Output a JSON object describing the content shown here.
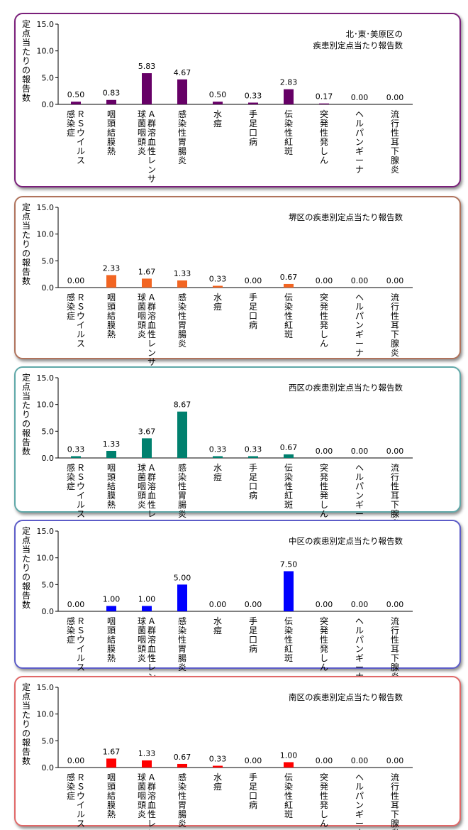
{
  "y_axis_label": "定点当たりの報告数",
  "categories": [
    [
      "ＲＳウイルス",
      "感染症"
    ],
    [
      "咽頭結膜熱"
    ],
    [
      "Ａ群溶血性レンサ",
      "球菌咽頭炎"
    ],
    [
      "感染性胃腸炎"
    ],
    [
      "水痘"
    ],
    [
      "手足口病"
    ],
    [
      "伝染性紅斑"
    ],
    [
      "突発性発しん"
    ],
    [
      "ヘルパンギーナ"
    ],
    [
      "流行性耳下腺炎"
    ]
  ],
  "chart_data": [
    {
      "type": "bar",
      "title": "北･東･美原区の\n疾患別定点当たり報告数",
      "ylim": [
        0,
        15
      ],
      "yticks": [
        "0.0",
        "5.0",
        "10.0",
        "15.0"
      ],
      "color": "#660066",
      "border_color": "#7a1f7a",
      "values": [
        0.5,
        0.83,
        5.83,
        4.67,
        0.5,
        0.33,
        2.83,
        0.17,
        0.0,
        0.0
      ],
      "value_labels": [
        "0.50",
        "0.83",
        "5.83",
        "4.67",
        "0.50",
        "0.33",
        "2.83",
        "0.17",
        "0.00",
        "0.00"
      ]
    },
    {
      "type": "bar",
      "title": "堺区の疾患別定点当たり報告数",
      "ylim": [
        0,
        15
      ],
      "yticks": [
        "0.0",
        "5.0",
        "10.0",
        "15.0"
      ],
      "color": "#f26522",
      "border_color": "#b0735c",
      "values": [
        0.0,
        2.33,
        1.67,
        1.33,
        0.33,
        0.0,
        0.67,
        0.0,
        0.0,
        0.0
      ],
      "value_labels": [
        "0.00",
        "2.33",
        "1.67",
        "1.33",
        "0.33",
        "0.00",
        "0.67",
        "0.00",
        "0.00",
        "0.00"
      ]
    },
    {
      "type": "bar",
      "title": "西区の疾患別定点当たり報告数",
      "ylim": [
        0,
        15
      ],
      "yticks": [
        "0.0",
        "5.0",
        "10.0",
        "15.0"
      ],
      "color": "#00806e",
      "border_color": "#5fa8a8",
      "values": [
        0.33,
        1.33,
        3.67,
        8.67,
        0.33,
        0.33,
        0.67,
        0.0,
        0.0,
        0.0
      ],
      "value_labels": [
        "0.33",
        "1.33",
        "3.67",
        "8.67",
        "0.33",
        "0.33",
        "0.67",
        "0.00",
        "0.00",
        "0.00"
      ]
    },
    {
      "type": "bar",
      "title": "中区の疾患別定点当たり報告数",
      "ylim": [
        0,
        15
      ],
      "yticks": [
        "0.0",
        "5.0",
        "10.0",
        "15.0"
      ],
      "color": "#0000ff",
      "border_color": "#5c5cc8",
      "values": [
        0.0,
        1.0,
        1.0,
        5.0,
        0.0,
        0.0,
        7.5,
        0.0,
        0.0,
        0.0
      ],
      "value_labels": [
        "0.00",
        "1.00",
        "1.00",
        "5.00",
        "0.00",
        "0.00",
        "7.50",
        "0.00",
        "0.00",
        "0.00"
      ]
    },
    {
      "type": "bar",
      "title": "南区の疾患別定点当たり報告数",
      "ylim": [
        0,
        15
      ],
      "yticks": [
        "0.0",
        "5.0",
        "10.0",
        "15.0"
      ],
      "color": "#ff0000",
      "border_color": "#e06868",
      "values": [
        0.0,
        1.67,
        1.33,
        0.67,
        0.33,
        0.0,
        1.0,
        0.0,
        0.0,
        0.0
      ],
      "value_labels": [
        "0.00",
        "1.67",
        "1.33",
        "0.67",
        "0.33",
        "0.00",
        "1.00",
        "0.00",
        "0.00",
        "0.00"
      ]
    }
  ]
}
